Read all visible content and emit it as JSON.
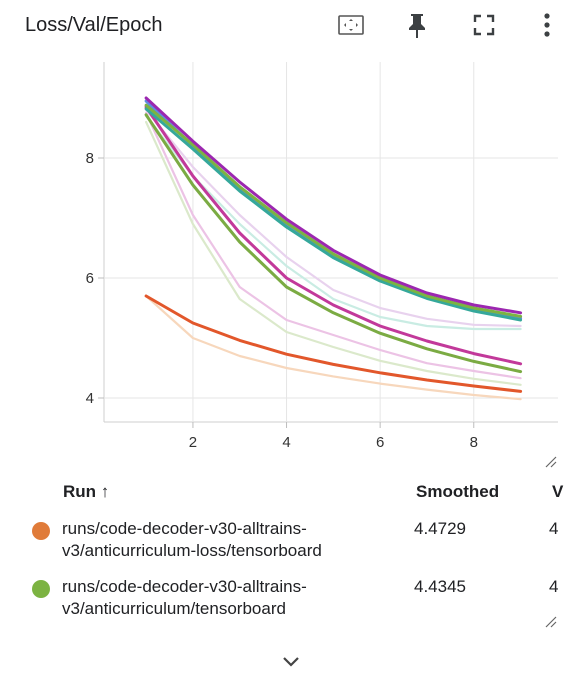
{
  "card": {
    "title": "Loss/Val/Epoch",
    "tools": [
      {
        "icon": "fit-domain-icon"
      },
      {
        "icon": "pin-icon"
      },
      {
        "icon": "fullscreen-icon"
      },
      {
        "icon": "more-vert-icon"
      }
    ]
  },
  "chart_data": {
    "type": "line",
    "title": "Loss/Val/Epoch",
    "xlabel": "",
    "ylabel": "",
    "xlim": [
      0.1,
      9.8
    ],
    "ylim": [
      3.6,
      9.6
    ],
    "xticks": [
      2,
      4,
      6,
      8
    ],
    "yticks": [
      4,
      6,
      8
    ],
    "grid": true,
    "series": [
      {
        "color": "#f7d7bc",
        "x": [
          1,
          2,
          3,
          4,
          5,
          6,
          7,
          8,
          9
        ],
        "y": [
          5.7,
          5.0,
          4.7,
          4.5,
          4.36,
          4.24,
          4.14,
          4.05,
          3.98
        ]
      },
      {
        "color": "#dbe9cb",
        "x": [
          1,
          2,
          3,
          4,
          5,
          6,
          7,
          8,
          9
        ],
        "y": [
          8.6,
          6.9,
          5.65,
          5.1,
          4.85,
          4.62,
          4.45,
          4.32,
          4.22
        ]
      },
      {
        "color": "#ecc3e5",
        "x": [
          1,
          2,
          3,
          4,
          5,
          6,
          7,
          8,
          9
        ],
        "y": [
          8.75,
          7.05,
          5.85,
          5.3,
          5.05,
          4.8,
          4.58,
          4.45,
          4.33
        ]
      },
      {
        "color": "#c9ece3",
        "x": [
          1,
          2,
          3,
          4,
          5,
          6,
          7,
          8,
          9
        ],
        "y": [
          8.7,
          7.7,
          6.9,
          6.2,
          5.65,
          5.35,
          5.2,
          5.15,
          5.15
        ]
      },
      {
        "color": "#e8d2ee",
        "x": [
          1,
          2,
          3,
          4,
          5,
          6,
          7,
          8,
          9
        ],
        "y": [
          8.8,
          7.85,
          7.05,
          6.35,
          5.8,
          5.5,
          5.32,
          5.22,
          5.2
        ]
      },
      {
        "color": "#e2572b",
        "x": [
          1,
          2,
          3,
          4,
          5,
          6,
          7,
          8,
          9
        ],
        "y": [
          5.7,
          5.25,
          4.96,
          4.73,
          4.56,
          4.42,
          4.3,
          4.2,
          4.11
        ]
      },
      {
        "color": "#7bab43",
        "x": [
          1,
          2,
          3,
          4,
          5,
          6,
          7,
          8,
          9
        ],
        "y": [
          8.72,
          7.55,
          6.6,
          5.85,
          5.42,
          5.08,
          4.82,
          4.61,
          4.44
        ]
      },
      {
        "color": "#c2399a",
        "x": [
          1,
          2,
          3,
          4,
          5,
          6,
          7,
          8,
          9
        ],
        "y": [
          8.85,
          7.7,
          6.75,
          6.0,
          5.55,
          5.2,
          4.95,
          4.74,
          4.57
        ]
      },
      {
        "color": "#5e8be0",
        "x": [
          1,
          2,
          3,
          4,
          5,
          6,
          7,
          8,
          9
        ],
        "y": [
          8.95,
          8.2,
          7.5,
          6.88,
          6.38,
          5.98,
          5.68,
          5.48,
          5.33
        ]
      },
      {
        "color": "#35a89b",
        "x": [
          1,
          2,
          3,
          4,
          5,
          6,
          7,
          8,
          9
        ],
        "y": [
          8.82,
          8.15,
          7.45,
          6.85,
          6.34,
          5.95,
          5.66,
          5.45,
          5.3
        ]
      },
      {
        "color": "#7cb342",
        "x": [
          1,
          2,
          3,
          4,
          5,
          6,
          7,
          8,
          9
        ],
        "y": [
          8.88,
          8.22,
          7.52,
          6.92,
          6.4,
          6.0,
          5.7,
          5.5,
          5.36
        ]
      },
      {
        "color": "#9c27b0",
        "x": [
          1,
          2,
          3,
          4,
          5,
          6,
          7,
          8,
          9
        ],
        "y": [
          9.0,
          8.28,
          7.6,
          6.98,
          6.46,
          6.05,
          5.75,
          5.55,
          5.42
        ]
      }
    ]
  },
  "table": {
    "headers": {
      "run": "Run ↑",
      "smoothed": "Smoothed",
      "value": "V"
    },
    "rows": [
      {
        "color": "#e07b39",
        "name": "runs/code-decoder-v30-alltrains-v3/anticurriculum-loss/tensorboard",
        "smoothed": "4.4729",
        "value": "4"
      },
      {
        "color": "#7cb342",
        "name": "runs/code-decoder-v30-alltrains-v3/anticurriculum/tensorboard",
        "smoothed": "4.4345",
        "value": "4"
      }
    ]
  }
}
